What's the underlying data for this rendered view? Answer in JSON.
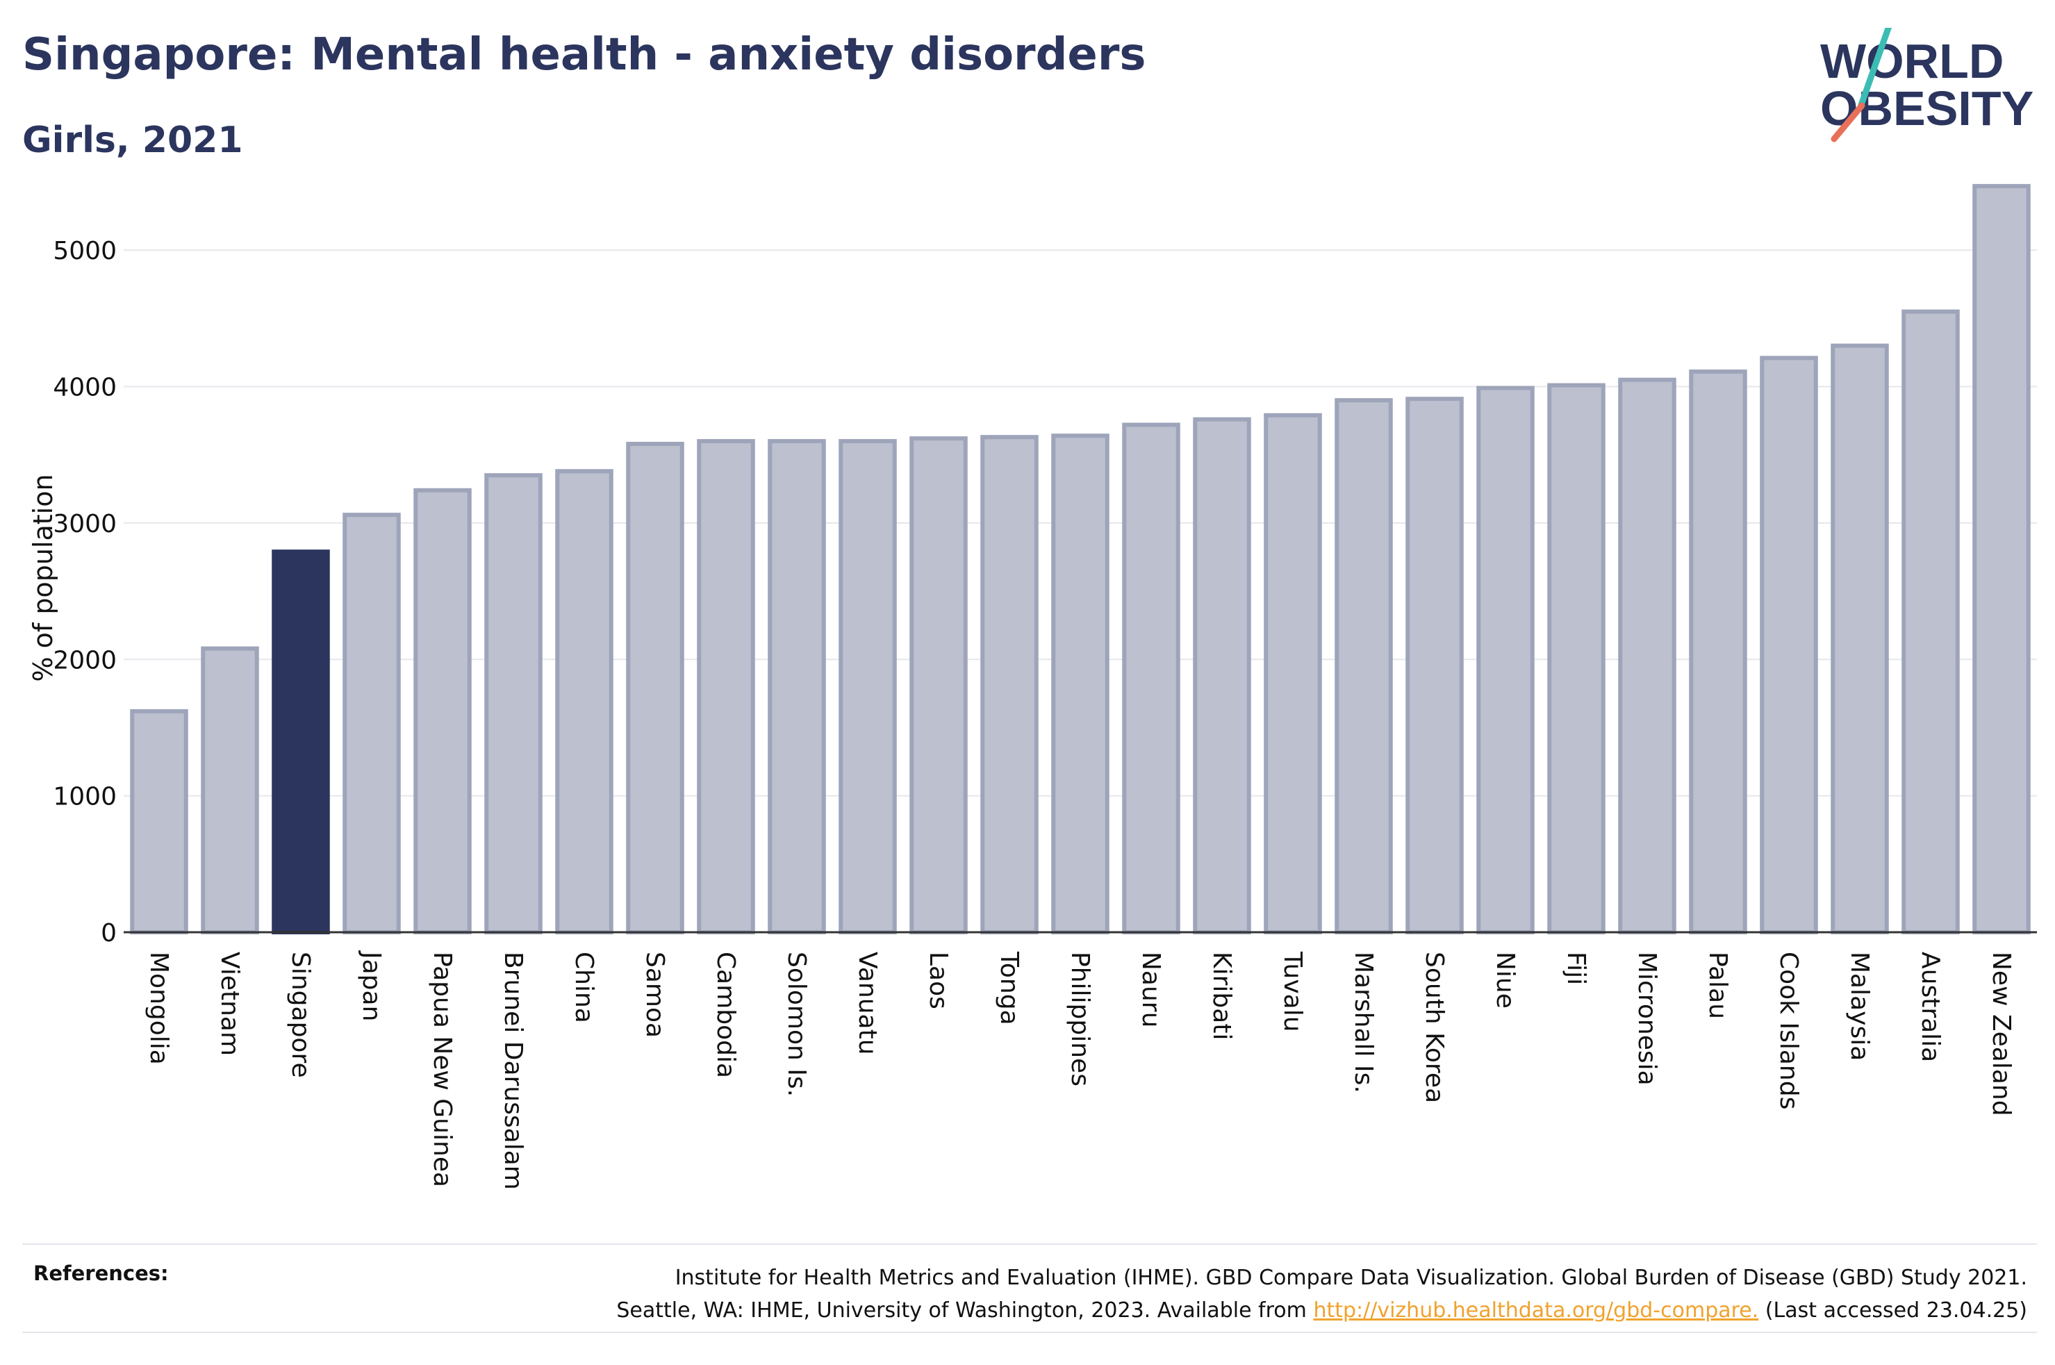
{
  "header": {
    "title": "Singapore: Mental health - anxiety disorders",
    "subtitle": "Girls, 2021"
  },
  "logo": {
    "line1": "WORLD",
    "line2": "OBESITY"
  },
  "chart_data": {
    "type": "bar",
    "title": "Singapore: Mental health - anxiety disorders",
    "subtitle": "Girls, 2021",
    "xlabel": "",
    "ylabel": "% of population",
    "ylim": [
      0,
      5500
    ],
    "yticks": [
      0,
      1000,
      2000,
      3000,
      4000,
      5000
    ],
    "grid": true,
    "highlight": "Singapore",
    "colors": {
      "bar": "#bcc0cf",
      "bar_edge": "#9ea4b9",
      "highlight": "#2b355e",
      "grid": "#e6e7ec",
      "axis": "#333333"
    },
    "categories": [
      "Mongolia",
      "Vietnam",
      "Singapore",
      "Japan",
      "Papua New Guinea",
      "Brunei Darussalam",
      "China",
      "Samoa",
      "Cambodia",
      "Solomon Is.",
      "Vanuatu",
      "Laos",
      "Tonga",
      "Philippines",
      "Nauru",
      "Kiribati",
      "Tuvalu",
      "Marshall Is.",
      "South Korea",
      "Niue",
      "Fiji",
      "Micronesia",
      "Palau",
      "Cook Islands",
      "Malaysia",
      "Australia",
      "New Zealand"
    ],
    "values": [
      1620,
      2080,
      2790,
      3060,
      3240,
      3350,
      3380,
      3580,
      3600,
      3600,
      3600,
      3620,
      3630,
      3640,
      3720,
      3760,
      3790,
      3900,
      3910,
      3990,
      4010,
      4050,
      4110,
      4210,
      4300,
      4550,
      5470
    ]
  },
  "references": {
    "label": "References:",
    "line1": "Institute for Health Metrics and Evaluation (IHME). GBD Compare Data Visualization. Global Burden of Disease (GBD) Study 2021.",
    "line2_prefix": "Seattle, WA: IHME, University of Washington, 2023. Available from",
    "link": "http://vizhub.healthdata.org/gbd-compare.",
    "line2_suffix": "(Last accessed 23.04.25)"
  }
}
